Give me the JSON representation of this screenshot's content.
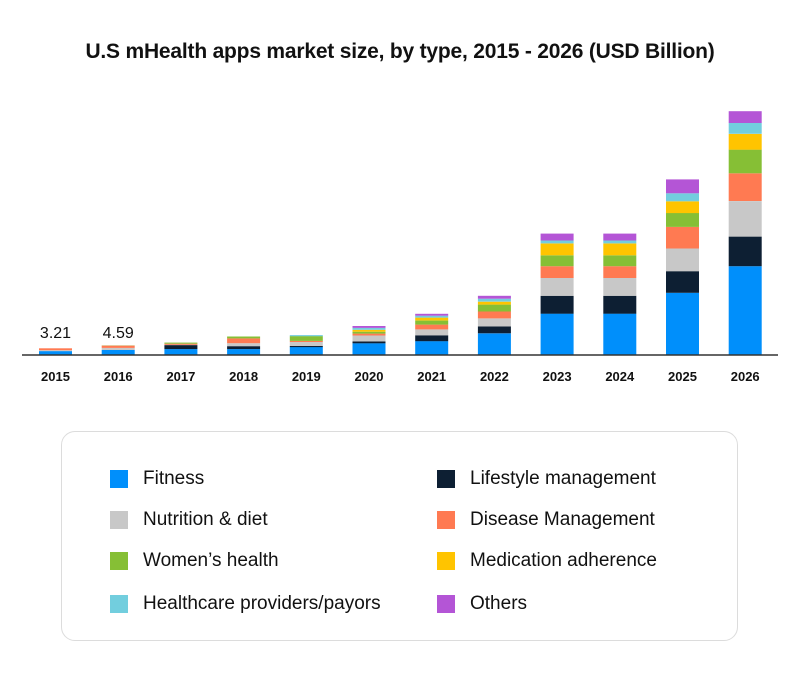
{
  "chart_data": {
    "type": "bar",
    "stacked": true,
    "title": "U.S mHealth apps market size, by type, 2015 - 2026 (USD Billion)",
    "xlabel": "",
    "ylabel": "",
    "grid": false,
    "legend_position": "bottom",
    "ylim": [
      0,
      125
    ],
    "categories": [
      "2015",
      "2016",
      "2017",
      "2018",
      "2019",
      "2020",
      "2021",
      "2022",
      "2023",
      "2024",
      "2025",
      "2026"
    ],
    "annotations": [
      {
        "category": "2015",
        "text": "3.21"
      },
      {
        "category": "2016",
        "text": "4.59"
      }
    ],
    "series": [
      {
        "name": "Fitness",
        "color": "#008FFB",
        "values": [
          1.85,
          2.4,
          2.8,
          2.8,
          3.8,
          5.6,
          6.6,
          10.3,
          19.7,
          19.7,
          29.6,
          42.3
        ]
      },
      {
        "name": "Lifestyle management",
        "color": "#0D1F33",
        "values": [
          0.0,
          0.0,
          1.9,
          1.4,
          0.5,
          0.9,
          2.8,
          3.3,
          8.5,
          8.5,
          10.3,
          14.1
        ]
      },
      {
        "name": "Nutrition & diet",
        "color": "#C8C8C8",
        "values": [
          0.45,
          1.0,
          0.2,
          1.4,
          1.9,
          2.8,
          2.8,
          3.8,
          8.5,
          8.5,
          10.8,
          16.9
        ]
      },
      {
        "name": "Disease Management",
        "color": "#FF7A52",
        "values": [
          0.91,
          1.09,
          0.5,
          2.3,
          0.5,
          0.9,
          2.3,
          3.3,
          5.6,
          5.6,
          10.3,
          13.2
        ]
      },
      {
        "name": "Women’s health",
        "color": "#86BF35",
        "values": [
          0.0,
          0.1,
          0.5,
          0.9,
          2.3,
          0.9,
          1.9,
          3.3,
          5.2,
          5.2,
          6.6,
          11.3
        ]
      },
      {
        "name": "Medication adherence",
        "color": "#FFC400",
        "values": [
          0.0,
          0.0,
          0.0,
          0.0,
          0.0,
          0.9,
          1.4,
          1.4,
          5.6,
          5.6,
          5.6,
          7.5
        ]
      },
      {
        "name": "Healthcare providers/payors",
        "color": "#72CEDE",
        "values": [
          0.0,
          0.0,
          0.0,
          0.0,
          0.5,
          0.9,
          0.9,
          1.4,
          1.4,
          1.4,
          3.8,
          5.2
        ]
      },
      {
        "name": "Others",
        "color": "#B455D6",
        "values": [
          0.0,
          0.0,
          0.0,
          0.0,
          0.0,
          0.9,
          0.9,
          1.4,
          3.3,
          3.3,
          6.6,
          5.6
        ]
      }
    ]
  },
  "legend": {
    "items": [
      {
        "label": "Fitness",
        "color": "#008FFB"
      },
      {
        "label": "Lifestyle management",
        "color": "#0D1F33"
      },
      {
        "label": "Nutrition & diet",
        "color": "#C8C8C8"
      },
      {
        "label": "Disease Management",
        "color": "#FF7A52"
      },
      {
        "label": "Women’s health",
        "color": "#86BF35"
      },
      {
        "label": "Medication adherence",
        "color": "#FFC400"
      },
      {
        "label": "Healthcare providers/payors",
        "color": "#72CEDE"
      },
      {
        "label": "Others",
        "color": "#B455D6"
      }
    ]
  },
  "colors": {
    "axis": "#333333",
    "text": "#111111",
    "legend_border": "#dcdcdc"
  }
}
